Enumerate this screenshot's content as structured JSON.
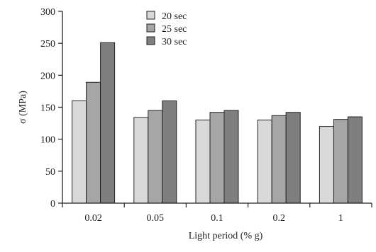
{
  "chart_data": {
    "type": "bar",
    "title": "",
    "xlabel": "Light period (% g)",
    "ylabel": "σ (MPa)",
    "categories": [
      "0.02",
      "0.05",
      "0.1",
      "0.2",
      "1"
    ],
    "ylim": [
      0,
      300
    ],
    "yticks": [
      "0",
      "50",
      "100",
      "150",
      "200",
      "250",
      "300"
    ],
    "grid": false,
    "legend_position": "top-center",
    "series": [
      {
        "name": "20 sec",
        "color": "#d9d9d9",
        "values": [
          160,
          134,
          130,
          130,
          120
        ]
      },
      {
        "name": "25 sec",
        "color": "#a6a6a6",
        "values": [
          189,
          145,
          142,
          137,
          131
        ]
      },
      {
        "name": "30 sec",
        "color": "#7f7f7f",
        "values": [
          251,
          160,
          145,
          142,
          135
        ]
      }
    ]
  }
}
